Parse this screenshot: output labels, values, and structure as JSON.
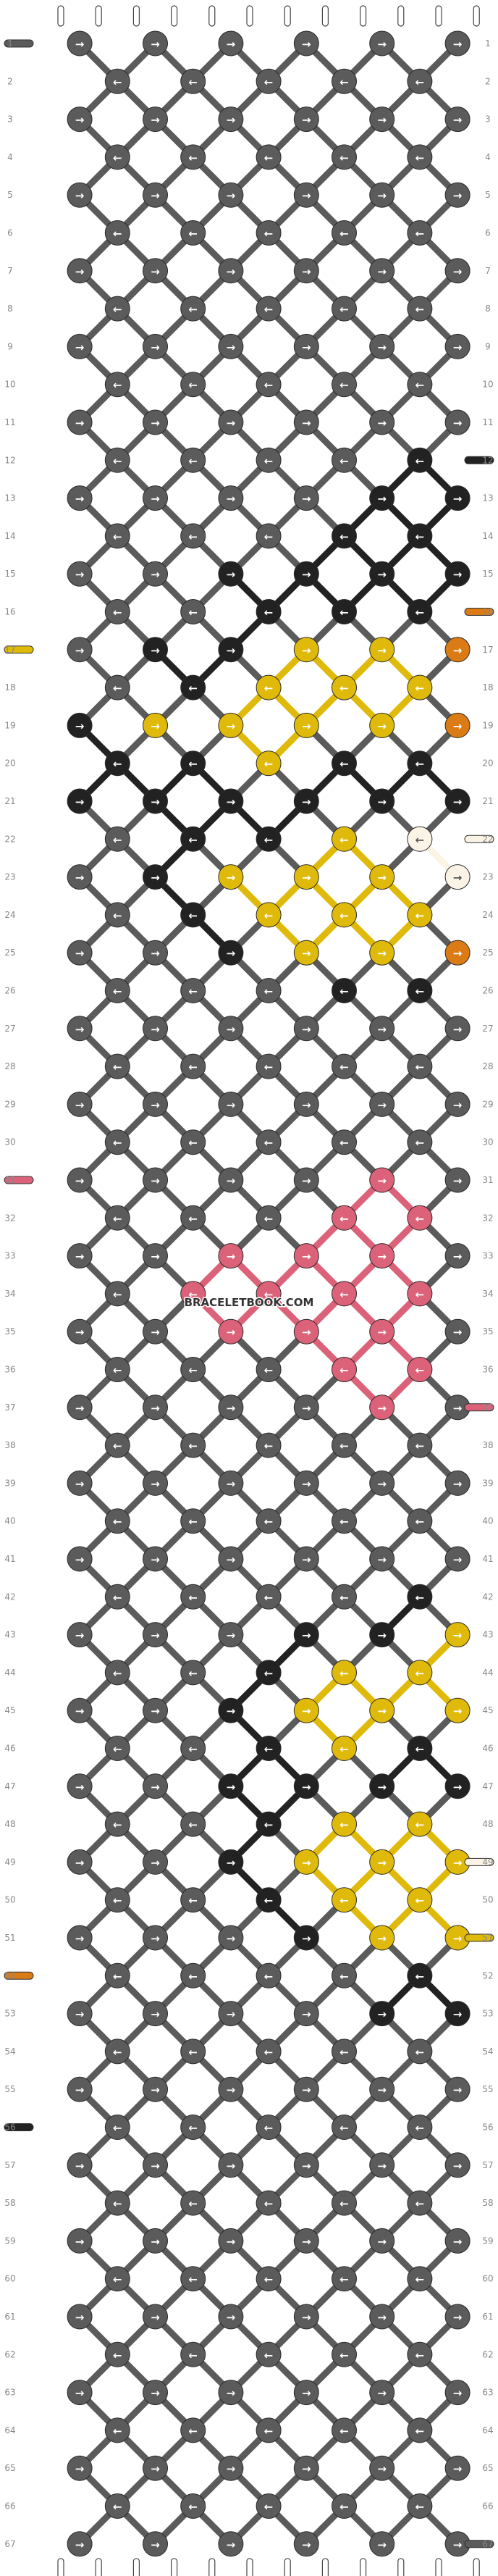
{
  "watermark": "BRACELETBOOK.COM",
  "strings": 12,
  "rows": 67,
  "row_labels": [
    "1",
    "2",
    "3",
    "4",
    "5",
    "6",
    "7",
    "8",
    "9",
    "10",
    "11",
    "12",
    "13",
    "14",
    "15",
    "16",
    "17",
    "18",
    "19",
    "20",
    "21",
    "22",
    "23",
    "24",
    "25",
    "26",
    "27",
    "28",
    "29",
    "30",
    "31",
    "32",
    "33",
    "34",
    "35",
    "36",
    "37",
    "38",
    "39",
    "40",
    "41",
    "42",
    "43",
    "44",
    "45",
    "46",
    "47",
    "48",
    "49",
    "50",
    "51",
    "52",
    "53",
    "54",
    "55",
    "56",
    "57",
    "58",
    "59",
    "60",
    "61",
    "62",
    "63",
    "64",
    "65",
    "66",
    "67"
  ],
  "colors": {
    "G": "#5b5b5b",
    "K": "#222222",
    "Y": "#dfba0a",
    "O": "#da7b16",
    "W": "#fbf3e6",
    "P": "#db6278"
  },
  "background_color": "G",
  "arrows_odd_row": "→",
  "arrows_even_row": "←",
  "regions": [
    {
      "row": 12,
      "knots": "....K."
    },
    {
      "row": 13,
      "knots": "....KK"
    },
    {
      "row": 14,
      "knots": "...KKK"
    },
    {
      "row": 15,
      "knots": "..KKKKK"
    },
    {
      "row": 16,
      "knots": "..KKKOKK"
    },
    {
      "row": 17,
      "knots": ".KKYYOOK"
    },
    {
      "row": 18,
      "knots": ".KYYYYOKK"
    },
    {
      "row": 19,
      "knots": "KYYYYOOKK"
    },
    {
      "row": 20,
      "knots": "KKYKKKOKK"
    },
    {
      "row": 21,
      "knots": "KKKKKKKKK"
    },
    {
      "row": 22,
      "knots": ".KKYWKKKK"
    },
    {
      "row": 23,
      "knots": ".KYYYWOOKK"
    },
    {
      "row": 24,
      "knots": ".KYYYWOOK"
    },
    {
      "row": 25,
      "knots": "..KYYOOKK"
    },
    {
      "row": 26,
      "knots": "...KKKK"
    },
    {
      "row": 31,
      "knots": "....P"
    },
    {
      "row": 32,
      "knots": "...PP"
    },
    {
      "row": 33,
      "knots": "..PPP"
    },
    {
      "row": 34,
      "knots": ".PPPPP"
    },
    {
      "row": 35,
      "knots": "..PPP"
    },
    {
      "row": 36,
      "knots": "...PP"
    },
    {
      "row": 37,
      "knots": "....P"
    },
    {
      "row": 42,
      "knots": "....K"
    },
    {
      "row": 43,
      "knots": "...KKYO"
    },
    {
      "row": 44,
      "knots": "..KYYYOK"
    },
    {
      "row": 45,
      "knots": "..KYYYOOK"
    },
    {
      "row": 46,
      "knots": "..KYKKKOK"
    },
    {
      "row": 47,
      "knots": "..KKKKKKK"
    },
    {
      "row": 48,
      "knots": "..KYYWKKK"
    },
    {
      "row": 49,
      "knots": "..KYYYWOOK"
    },
    {
      "row": 50,
      "knots": "..KYYYOOK"
    },
    {
      "row": 51,
      "knots": "...KYYOOK"
    },
    {
      "row": 52,
      "knots": "....KKOK"
    },
    {
      "row": 53,
      "knots": "....KKKK"
    },
    {
      "row": 54,
      "knots": ".....KKK"
    },
    {
      "row": 55,
      "knots": "......KK"
    },
    {
      "row": 56,
      "knots": ".......K"
    }
  ],
  "left_tails": [
    {
      "row": 1,
      "color": "G"
    },
    {
      "row": 17,
      "color": "Y"
    },
    {
      "row": 31,
      "color": "P"
    },
    {
      "row": 52,
      "color": "O"
    },
    {
      "row": 56,
      "color": "K"
    }
  ],
  "right_tails": [
    {
      "row": 12,
      "color": "K"
    },
    {
      "row": 16,
      "color": "O"
    },
    {
      "row": 22,
      "color": "W"
    },
    {
      "row": 37,
      "color": "P"
    },
    {
      "row": 49,
      "color": "W"
    },
    {
      "row": 51,
      "color": "Y"
    },
    {
      "row": 67,
      "color": "G"
    }
  ]
}
